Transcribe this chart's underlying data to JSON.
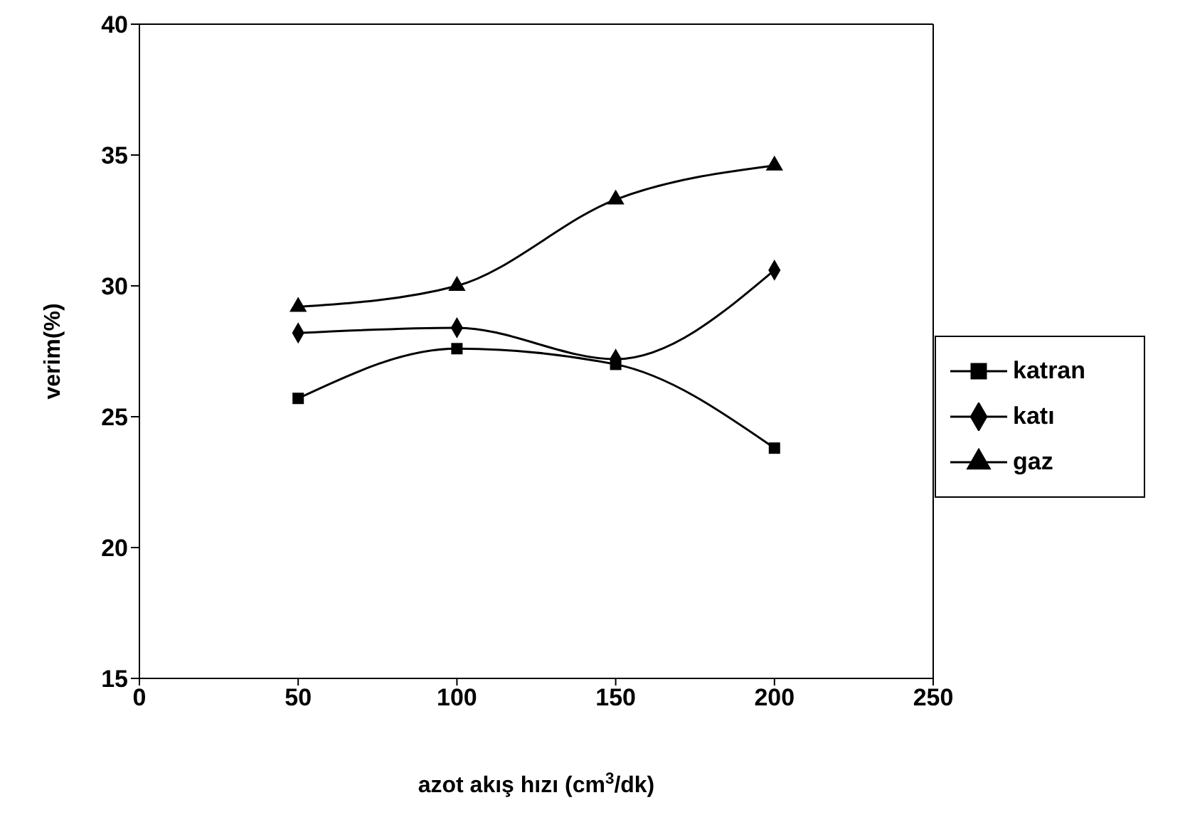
{
  "chart_data": {
    "type": "line",
    "xlabel": "azot akış hızı (cm$^{3}$/dk)",
    "ylabel": "verim(%)",
    "x": [
      50,
      100,
      150,
      200
    ],
    "series": [
      {
        "name": "katran",
        "color": "#000000",
        "marker": "square",
        "values": [
          25.7,
          27.6,
          27.0,
          23.8
        ]
      },
      {
        "name": "katı",
        "color": "#000000",
        "marker": "diamond",
        "values": [
          28.2,
          28.4,
          27.2,
          30.6
        ]
      },
      {
        "name": "gaz",
        "color": "#000000",
        "marker": "triangle",
        "values": [
          29.2,
          30.0,
          33.3,
          34.6
        ]
      }
    ],
    "xlim": [
      0,
      250
    ],
    "xticks": [
      0,
      50,
      100,
      150,
      200,
      250
    ],
    "ylim": [
      15,
      40
    ],
    "yticks": [
      15,
      20,
      25,
      30,
      35,
      40
    ],
    "legend": "right",
    "line_style": "solid"
  }
}
